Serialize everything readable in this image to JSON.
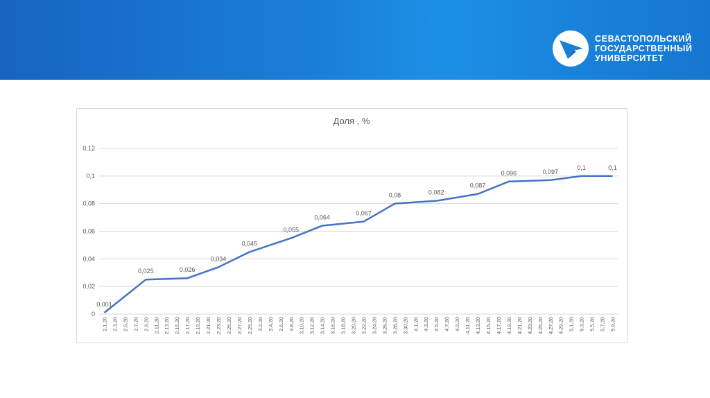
{
  "header": {
    "logo_icon": "university-arrow-logo-icon",
    "logo_lines": [
      "СЕВАСТОПОЛЬСКИЙ",
      "ГОСУДАРСТВЕННЫЙ",
      "УНИВЕРСИТЕТ"
    ]
  },
  "colors": {
    "banner": "#1a7fd8",
    "series": "#4472c4",
    "grid": "#d9d9d9",
    "text": "#595959"
  },
  "chart_data": {
    "type": "line",
    "title": "Доля , %",
    "xlabel": "",
    "ylabel": "",
    "ylim": [
      0,
      0.12
    ],
    "yticks": [
      "0",
      "0,02",
      "0,04",
      "0,06",
      "0,08",
      "0,1",
      "0,12"
    ],
    "grid": true,
    "legend": "none",
    "categories": [
      "2.1.20",
      "2.3.20",
      "2.5.20",
      "2.7.20",
      "2.9.20",
      "2.11.20",
      "2.13.20",
      "2.15.20",
      "2.17.20",
      "2.19.20",
      "2.21.20",
      "2.23.20",
      "2.25.20",
      "2.27.20",
      "2.29.20",
      "3.2.20",
      "3.4.20",
      "3.6.20",
      "3.8.20",
      "3.10.20",
      "3.12.20",
      "3.14.20",
      "3.16.20",
      "3.18.20",
      "3.20.20",
      "3.22.20",
      "3.24.20",
      "3.26.20",
      "3.28.20",
      "3.30.20",
      "4.1.20",
      "4.3.20",
      "4.5.20",
      "4.7.20",
      "4.9.20",
      "4.11.20",
      "4.13.20",
      "4.15.20",
      "4.17.20",
      "4.19.20",
      "4.21.20",
      "4.23.20",
      "4.25.20",
      "4.27.20",
      "4.29.20",
      "5.1.20",
      "5.3.20",
      "5.5.20",
      "5.7.20",
      "5.9.20"
    ],
    "series": [
      {
        "points": [
          {
            "x": "2.1.20",
            "y": 0.001,
            "label": "0,001"
          },
          {
            "x": "2.9.20",
            "y": 0.025,
            "label": "0,025"
          },
          {
            "x": "2.17.20",
            "y": 0.026,
            "label": "0,026"
          },
          {
            "x": "2.23.20",
            "y": 0.034,
            "label": "0,034"
          },
          {
            "x": "2.29.20",
            "y": 0.045,
            "label": "0,045"
          },
          {
            "x": "3.8.20",
            "y": 0.055,
            "label": "0,055"
          },
          {
            "x": "3.14.20",
            "y": 0.064,
            "label": "0,064"
          },
          {
            "x": "3.22.20",
            "y": 0.067,
            "label": "0,067"
          },
          {
            "x": "3.28.20",
            "y": 0.08,
            "label": "0,08"
          },
          {
            "x": "4.5.20",
            "y": 0.082,
            "label": "0,082"
          },
          {
            "x": "4.13.20",
            "y": 0.087,
            "label": "0,087"
          },
          {
            "x": "4.19.20",
            "y": 0.096,
            "label": "0,096"
          },
          {
            "x": "4.27.20",
            "y": 0.097,
            "label": "0,097"
          },
          {
            "x": "5.3.20",
            "y": 0.1,
            "label": "0,1"
          },
          {
            "x": "5.9.20",
            "y": 0.1,
            "label": "0,1"
          }
        ]
      }
    ]
  }
}
